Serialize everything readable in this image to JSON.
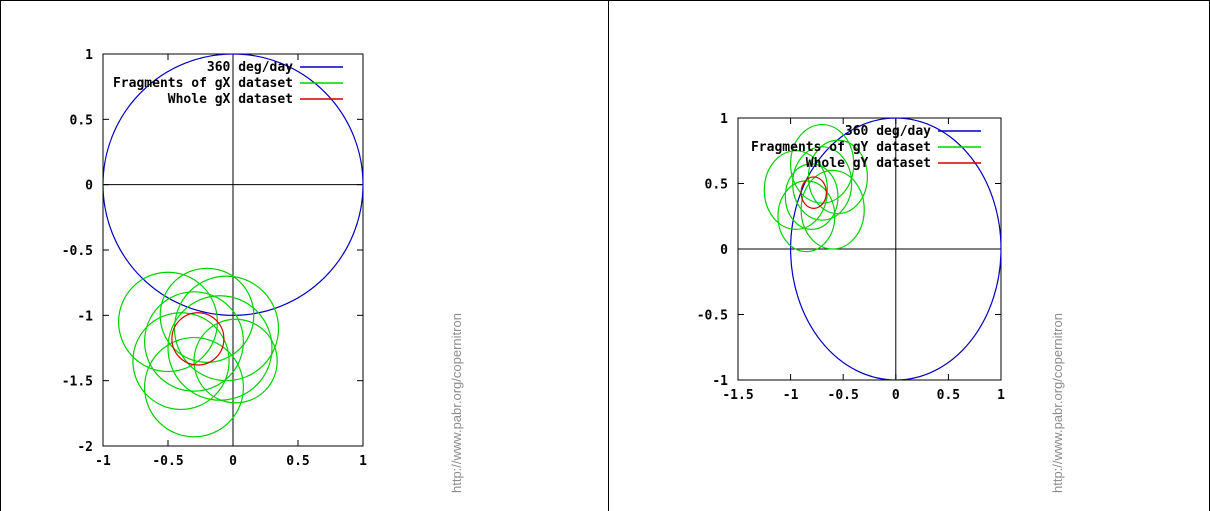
{
  "chart_data": [
    {
      "type": "line",
      "xlim": [
        -1,
        1
      ],
      "ylim": [
        -2,
        1
      ],
      "xticks": [
        "-1",
        "-0.5",
        "0",
        "0.5",
        "1"
      ],
      "xtick_values": [
        -1,
        -0.5,
        0,
        0.5,
        1
      ],
      "yticks": [
        "1",
        "0.5",
        "0",
        "-0.5",
        "-1",
        "-1.5",
        "-2"
      ],
      "ytick_values": [
        1,
        0.5,
        0,
        -0.5,
        -1,
        -1.5,
        -2
      ],
      "legend_position": "top-right",
      "series": [
        {
          "name": "360 deg/day",
          "color": "#0000c0",
          "circles": [
            {
              "cx": 0,
              "cy": 0,
              "r": 1
            }
          ]
        },
        {
          "name": "Fragments of gX dataset",
          "color": "#00d000",
          "circles": [
            {
              "cx": -0.05,
              "cy": -1.1,
              "r": 0.4
            },
            {
              "cx": -0.3,
              "cy": -1.2,
              "r": 0.38
            },
            {
              "cx": -0.4,
              "cy": -1.35,
              "r": 0.37
            },
            {
              "cx": -0.2,
              "cy": -1.0,
              "r": 0.36
            },
            {
              "cx": -0.1,
              "cy": -1.25,
              "r": 0.4
            },
            {
              "cx": -0.5,
              "cy": -1.05,
              "r": 0.38
            },
            {
              "cx": -0.3,
              "cy": -1.55,
              "r": 0.38
            },
            {
              "cx": 0.02,
              "cy": -1.35,
              "r": 0.32
            }
          ]
        },
        {
          "name": "Whole gX dataset",
          "color": "#d00000",
          "circles": [
            {
              "cx": -0.27,
              "cy": -1.18,
              "r": 0.2
            }
          ]
        }
      ]
    },
    {
      "type": "line",
      "xlim": [
        -1.5,
        1
      ],
      "ylim": [
        -1,
        1
      ],
      "xticks": [
        "-1.5",
        "-1",
        "-0.5",
        "0",
        "0.5",
        "1"
      ],
      "xtick_values": [
        -1.5,
        -1,
        -0.5,
        0,
        0.5,
        1
      ],
      "yticks": [
        "1",
        "0.5",
        "0",
        "-0.5",
        "-1"
      ],
      "ytick_values": [
        1,
        0.5,
        0,
        -0.5,
        -1
      ],
      "legend_position": "top-right",
      "series": [
        {
          "name": "360 deg/day",
          "color": "#0000c0",
          "circles": [
            {
              "cx": 0,
              "cy": 0,
              "r": 1
            }
          ]
        },
        {
          "name": "Fragments of gY dataset",
          "color": "#00d000",
          "circles": [
            {
              "cx": -0.7,
              "cy": 0.65,
              "r": 0.3
            },
            {
              "cx": -0.95,
              "cy": 0.45,
              "r": 0.3
            },
            {
              "cx": -0.6,
              "cy": 0.3,
              "r": 0.3
            },
            {
              "cx": -0.85,
              "cy": 0.25,
              "r": 0.27
            },
            {
              "cx": -0.7,
              "cy": 0.5,
              "r": 0.28
            },
            {
              "cx": -0.8,
              "cy": 0.4,
              "r": 0.25
            },
            {
              "cx": -0.55,
              "cy": 0.55,
              "r": 0.28
            }
          ]
        },
        {
          "name": "Whole gY dataset",
          "color": "#d00000",
          "circles": [
            {
              "cx": -0.78,
              "cy": 0.43,
              "r": 0.12
            }
          ]
        }
      ]
    }
  ],
  "watermark": "http://www.pabr.org/copernitron"
}
